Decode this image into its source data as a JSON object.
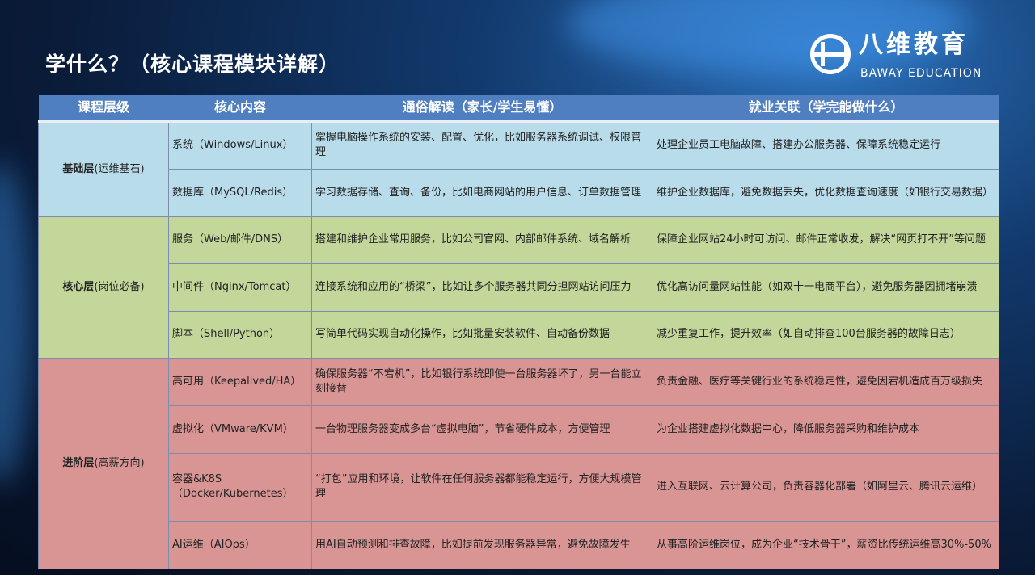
{
  "title": "学什么？（核心课程模块详解）",
  "logo": {
    "cn": "八维教育",
    "en": "BAWAY EDUCATION"
  },
  "colors": {
    "header": "#4f7fc0",
    "basic": "#b9dceb",
    "core": "#c4d79b",
    "advanced": "#d89594"
  },
  "table": {
    "headers": [
      "课程层级",
      "核心内容",
      "通俗解读（家长/学生易懂）",
      "就业关联（学完能做什么）"
    ],
    "groups": [
      {
        "level": "基础层",
        "note": "(运维基石)",
        "rows": [
          {
            "content": "系统（Windows/Linux）",
            "explain": "掌握电脑操作系统的安装、配置、优化，比如服务器系统调试、权限管理",
            "job": "处理企业员工电脑故障、搭建办公服务器、保障系统稳定运行"
          },
          {
            "content": "数据库（MySQL/Redis）",
            "explain": "学习数据存储、查询、备份，比如电商网站的用户信息、订单数据管理",
            "job": "维护企业数据库，避免数据丢失，优化数据查询速度（如银行交易数据）"
          }
        ]
      },
      {
        "level": "核心层",
        "note": "(岗位必备)",
        "rows": [
          {
            "content": "服务（Web/邮件/DNS）",
            "explain": "搭建和维护企业常用服务，比如公司官网、内部邮件系统、域名解析",
            "job": "保障企业网站24小时可访问、邮件正常收发，解决“网页打不开”等问题"
          },
          {
            "content": "中间件（Nginx/Tomcat）",
            "explain": "连接系统和应用的“桥梁”，比如让多个服务器共同分担网站访问压力",
            "job": "优化高访问量网站性能（如双十一电商平台），避免服务器因拥堵崩溃"
          },
          {
            "content": "脚本（Shell/Python）",
            "explain": "写简单代码实现自动化操作，比如批量安装软件、自动备份数据",
            "job": "减少重复工作，提升效率（如自动排查100台服务器的故障日志）"
          }
        ]
      },
      {
        "level": "进阶层",
        "note": "(高薪方向)",
        "rows": [
          {
            "content": "高可用（Keepalived/HA）",
            "explain": "确保服务器“不宕机”，比如银行系统即使一台服务器坏了，另一台能立刻接替",
            "job": "负责金融、医疗等关键行业的系统稳定性，避免因宕机造成百万级损失"
          },
          {
            "content": "虚拟化（VMware/KVM）",
            "explain": "一台物理服务器变成多台“虚拟电脑”，节省硬件成本，方便管理",
            "job": "为企业搭建虚拟化数据中心，降低服务器采购和维护成本"
          },
          {
            "content": "容器&K8S（Docker/Kubernetes）",
            "explain": "“打包”应用和环境，让软件在任何服务器都能稳定运行，方便大规模管理",
            "job": "进入互联网、云计算公司，负责容器化部署（如阿里云、腾讯云运维）"
          },
          {
            "content": "AI运维（AIOps）",
            "explain": "用AI自动预测和排查故障，比如提前发现服务器异常，避免故障发生",
            "job": "从事高阶运维岗位，成为企业“技术骨干”，薪资比传统运维高30%-50%"
          }
        ]
      }
    ]
  }
}
